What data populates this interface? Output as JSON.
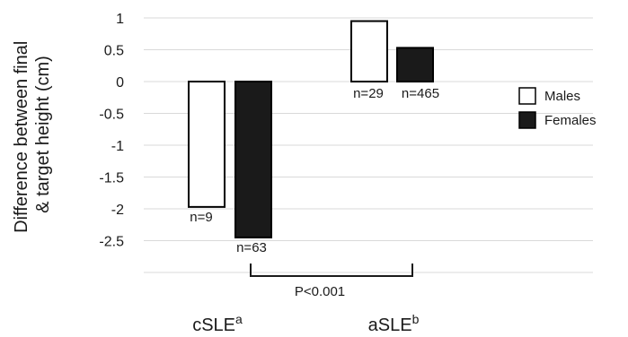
{
  "chart_data": {
    "type": "bar",
    "ylabel_lines": [
      "Difference between final",
      "& target height (cm)"
    ],
    "ylim": [
      -3.0,
      1.0
    ],
    "yticks": [
      1,
      0.5,
      0,
      -0.5,
      -1,
      -1.5,
      -2,
      -2.5
    ],
    "ytick_labels": [
      "1",
      "0.5",
      "0",
      "-0.5",
      "-1",
      "-1.5",
      "-2",
      "-2.5"
    ],
    "grid": true,
    "categories": [
      {
        "name": "cSLE",
        "superscript": "a"
      },
      {
        "name": "aSLE",
        "superscript": "b"
      }
    ],
    "series": [
      {
        "name": "Males",
        "fill": "#ffffff",
        "stroke": "#000000",
        "values": [
          -1.97,
          0.95
        ],
        "n_labels": [
          "n=9",
          "n=29"
        ]
      },
      {
        "name": "Females",
        "fill": "#1a1a1a",
        "stroke": "#000000",
        "values": [
          -2.45,
          0.53
        ],
        "n_labels": [
          "n=63",
          "n=465"
        ]
      }
    ],
    "annotation": {
      "text": "P<0.001"
    },
    "legend_position": "right"
  }
}
